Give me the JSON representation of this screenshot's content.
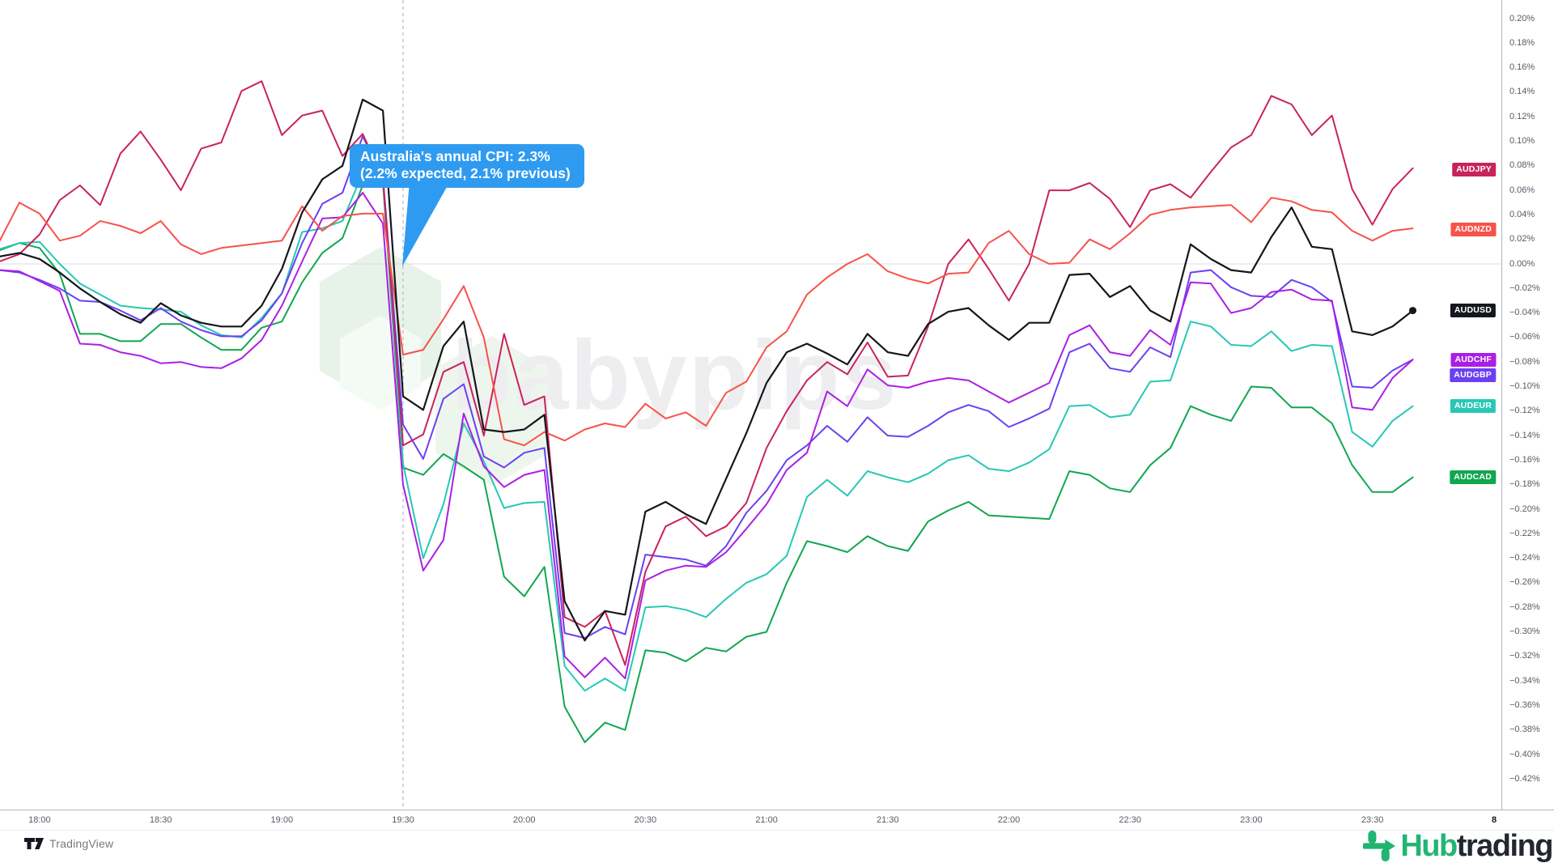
{
  "watermark": {
    "text": "babypips"
  },
  "callout": {
    "line1": "Australia's annual CPI: 2.3%",
    "line2": "(2.2% expected, 2.1% previous)",
    "color": "#2E9BF1"
  },
  "footer": {
    "tradingview_label": "TradingView",
    "brand_green": "Hub",
    "brand_dark": "trading"
  },
  "chart_data": {
    "type": "line",
    "title": "",
    "y_unit": "%",
    "ylim": [
      -0.42,
      0.2
    ],
    "y_step": 0.02,
    "grid": "zero-line-only",
    "legend_position": "right-price-scale-tags",
    "y_tick_labels": [
      "0.20%",
      "0.18%",
      "0.16%",
      "0.14%",
      "0.12%",
      "0.10%",
      "0.08%",
      "0.06%",
      "0.04%",
      "0.02%",
      "0.00%",
      "−0.02%",
      "−0.04%",
      "−0.06%",
      "−0.08%",
      "−0.10%",
      "−0.12%",
      "−0.14%",
      "−0.16%",
      "−0.18%",
      "−0.20%",
      "−0.22%",
      "−0.24%",
      "−0.26%",
      "−0.28%",
      "−0.30%",
      "−0.32%",
      "−0.34%",
      "−0.36%",
      "−0.38%",
      "−0.40%",
      "−0.42%"
    ],
    "x_tick_labels": [
      "18:00",
      "18:30",
      "19:00",
      "19:30",
      "20:00",
      "20:30",
      "21:00",
      "21:30",
      "22:00",
      "22:30",
      "23:00",
      "23:30"
    ],
    "date_marker": "8",
    "x_start_time": "17:50",
    "x_step_minutes": 5,
    "points": 71,
    "event": {
      "time": "19:30",
      "index": 20
    },
    "series": [
      {
        "name": "AUDCAD",
        "color": "#10A74F",
        "tag_value": -0.174,
        "end_dot": false,
        "values": [
          0.011,
          0.017,
          0.013,
          -0.008,
          -0.057,
          -0.057,
          -0.063,
          -0.063,
          -0.049,
          -0.049,
          -0.06,
          -0.07,
          -0.07,
          -0.052,
          -0.047,
          -0.015,
          0.009,
          0.021,
          0.064,
          0.067,
          -0.166,
          -0.172,
          -0.155,
          -0.165,
          -0.176,
          -0.255,
          -0.271,
          -0.247,
          -0.361,
          -0.39,
          -0.374,
          -0.38,
          -0.315,
          -0.317,
          -0.324,
          -0.313,
          -0.316,
          -0.304,
          -0.3,
          -0.26,
          -0.226,
          -0.23,
          -0.235,
          -0.222,
          -0.23,
          -0.234,
          -0.21,
          -0.201,
          -0.194,
          -0.205,
          -0.206,
          -0.207,
          -0.208,
          -0.169,
          -0.172,
          -0.183,
          -0.186,
          -0.164,
          -0.15,
          -0.116,
          -0.123,
          -0.128,
          -0.1,
          -0.101,
          -0.117,
          -0.117,
          -0.13,
          -0.164,
          -0.186,
          -0.186,
          -0.174
        ]
      },
      {
        "name": "AUDEUR",
        "color": "#26C8B5",
        "tag_value": -0.116,
        "end_dot": false,
        "values": [
          0.012,
          0.017,
          0.018,
          0.0,
          -0.016,
          -0.025,
          -0.034,
          -0.036,
          -0.037,
          -0.039,
          -0.05,
          -0.058,
          -0.06,
          -0.044,
          -0.024,
          0.026,
          0.029,
          0.035,
          0.074,
          0.07,
          -0.163,
          -0.24,
          -0.196,
          -0.13,
          -0.161,
          -0.199,
          -0.195,
          -0.194,
          -0.328,
          -0.348,
          -0.338,
          -0.348,
          -0.28,
          -0.279,
          -0.282,
          -0.288,
          -0.273,
          -0.26,
          -0.253,
          -0.238,
          -0.19,
          -0.176,
          -0.189,
          -0.169,
          -0.174,
          -0.178,
          -0.171,
          -0.16,
          -0.156,
          -0.167,
          -0.169,
          -0.162,
          -0.151,
          -0.116,
          -0.115,
          -0.125,
          -0.123,
          -0.096,
          -0.095,
          -0.047,
          -0.051,
          -0.066,
          -0.067,
          -0.055,
          -0.071,
          -0.066,
          -0.067,
          -0.137,
          -0.149,
          -0.128,
          -0.116
        ]
      },
      {
        "name": "AUDGBP",
        "color": "#6B40F2",
        "tag_value": -0.0905,
        "end_dot": false,
        "values": [
          -0.005,
          -0.007,
          -0.013,
          -0.02,
          -0.03,
          -0.031,
          -0.038,
          -0.046,
          -0.036,
          -0.047,
          -0.054,
          -0.059,
          -0.059,
          -0.046,
          -0.024,
          0.017,
          0.049,
          0.058,
          0.104,
          0.071,
          -0.131,
          -0.159,
          -0.11,
          -0.098,
          -0.157,
          -0.166,
          -0.154,
          -0.15,
          -0.301,
          -0.305,
          -0.296,
          -0.302,
          -0.237,
          -0.239,
          -0.241,
          -0.246,
          -0.23,
          -0.203,
          -0.185,
          -0.16,
          -0.148,
          -0.132,
          -0.145,
          -0.125,
          -0.14,
          -0.141,
          -0.132,
          -0.121,
          -0.115,
          -0.12,
          -0.133,
          -0.126,
          -0.118,
          -0.072,
          -0.065,
          -0.085,
          -0.088,
          -0.068,
          -0.076,
          -0.007,
          -0.005,
          -0.019,
          -0.026,
          -0.027,
          -0.013,
          -0.019,
          -0.031,
          -0.1,
          -0.101,
          -0.087,
          -0.078
        ]
      },
      {
        "name": "AUDCHF",
        "color": "#AB1FE4",
        "tag_value": -0.0785,
        "end_dot": false,
        "values": [
          -0.005,
          -0.006,
          -0.014,
          -0.022,
          -0.065,
          -0.066,
          -0.072,
          -0.075,
          -0.081,
          -0.08,
          -0.084,
          -0.085,
          -0.077,
          -0.062,
          -0.034,
          0.002,
          0.037,
          0.038,
          0.058,
          0.033,
          -0.18,
          -0.25,
          -0.225,
          -0.122,
          -0.165,
          -0.182,
          -0.172,
          -0.168,
          -0.32,
          -0.337,
          -0.321,
          -0.338,
          -0.258,
          -0.25,
          -0.246,
          -0.247,
          -0.235,
          -0.216,
          -0.196,
          -0.168,
          -0.154,
          -0.104,
          -0.116,
          -0.086,
          -0.099,
          -0.101,
          -0.096,
          -0.093,
          -0.095,
          -0.104,
          -0.113,
          -0.105,
          -0.097,
          -0.058,
          -0.05,
          -0.072,
          -0.075,
          -0.054,
          -0.066,
          -0.015,
          -0.016,
          -0.04,
          -0.036,
          -0.023,
          -0.021,
          -0.029,
          -0.03,
          -0.117,
          -0.119,
          -0.093,
          -0.078
        ]
      },
      {
        "name": "AUDJPY",
        "color": "#C9235C",
        "tag_value": 0.077,
        "end_dot": false,
        "values": [
          0.002,
          0.008,
          0.024,
          0.052,
          0.064,
          0.048,
          0.09,
          0.108,
          0.085,
          0.06,
          0.094,
          0.099,
          0.141,
          0.149,
          0.105,
          0.121,
          0.125,
          0.088,
          0.106,
          0.07,
          -0.148,
          -0.139,
          -0.088,
          -0.08,
          -0.14,
          -0.057,
          -0.115,
          -0.108,
          -0.288,
          -0.296,
          -0.283,
          -0.327,
          -0.251,
          -0.214,
          -0.206,
          -0.222,
          -0.214,
          -0.195,
          -0.15,
          -0.12,
          -0.095,
          -0.08,
          -0.09,
          -0.064,
          -0.092,
          -0.091,
          -0.051,
          0.0,
          0.02,
          -0.004,
          -0.03,
          0.0,
          0.06,
          0.06,
          0.066,
          0.053,
          0.03,
          0.06,
          0.065,
          0.054,
          0.075,
          0.095,
          0.105,
          0.137,
          0.13,
          0.105,
          0.121,
          0.061,
          0.032,
          0.061,
          0.078
        ]
      },
      {
        "name": "AUDNZD",
        "color": "#F7524B",
        "tag_value": 0.028,
        "end_dot": false,
        "values": [
          0.018,
          0.05,
          0.041,
          0.019,
          0.023,
          0.035,
          0.031,
          0.025,
          0.035,
          0.016,
          0.008,
          0.013,
          0.015,
          0.017,
          0.019,
          0.047,
          0.027,
          0.039,
          0.041,
          0.041,
          -0.074,
          -0.07,
          -0.045,
          -0.018,
          -0.06,
          -0.143,
          -0.148,
          -0.137,
          -0.144,
          -0.135,
          -0.13,
          -0.133,
          -0.114,
          -0.126,
          -0.121,
          -0.132,
          -0.105,
          -0.096,
          -0.068,
          -0.055,
          -0.025,
          -0.011,
          0.0,
          0.008,
          -0.006,
          -0.012,
          -0.016,
          -0.008,
          -0.007,
          0.017,
          0.027,
          0.008,
          0.0,
          0.001,
          0.02,
          0.012,
          0.025,
          0.04,
          0.044,
          0.046,
          0.047,
          0.048,
          0.034,
          0.054,
          0.051,
          0.044,
          0.042,
          0.027,
          0.019,
          0.027,
          0.029
        ]
      },
      {
        "name": "AUDUSD",
        "color": "#14171C",
        "tag_value": -0.038,
        "end_dot": true,
        "values": [
          0.006,
          0.009,
          0.004,
          -0.007,
          -0.02,
          -0.031,
          -0.041,
          -0.048,
          -0.032,
          -0.042,
          -0.048,
          -0.051,
          -0.051,
          -0.034,
          -0.004,
          0.042,
          0.069,
          0.08,
          0.134,
          0.125,
          -0.108,
          -0.119,
          -0.067,
          -0.047,
          -0.135,
          -0.137,
          -0.135,
          -0.123,
          -0.275,
          -0.307,
          -0.283,
          -0.286,
          -0.202,
          -0.194,
          -0.204,
          -0.212,
          -0.175,
          -0.138,
          -0.097,
          -0.072,
          -0.065,
          -0.073,
          -0.082,
          -0.057,
          -0.072,
          -0.075,
          -0.049,
          -0.039,
          -0.036,
          -0.05,
          -0.062,
          -0.048,
          -0.048,
          -0.009,
          -0.008,
          -0.027,
          -0.018,
          -0.038,
          -0.047,
          0.016,
          0.004,
          -0.005,
          -0.007,
          0.022,
          0.046,
          0.014,
          0.012,
          -0.055,
          -0.058,
          -0.051,
          -0.038
        ]
      }
    ]
  }
}
